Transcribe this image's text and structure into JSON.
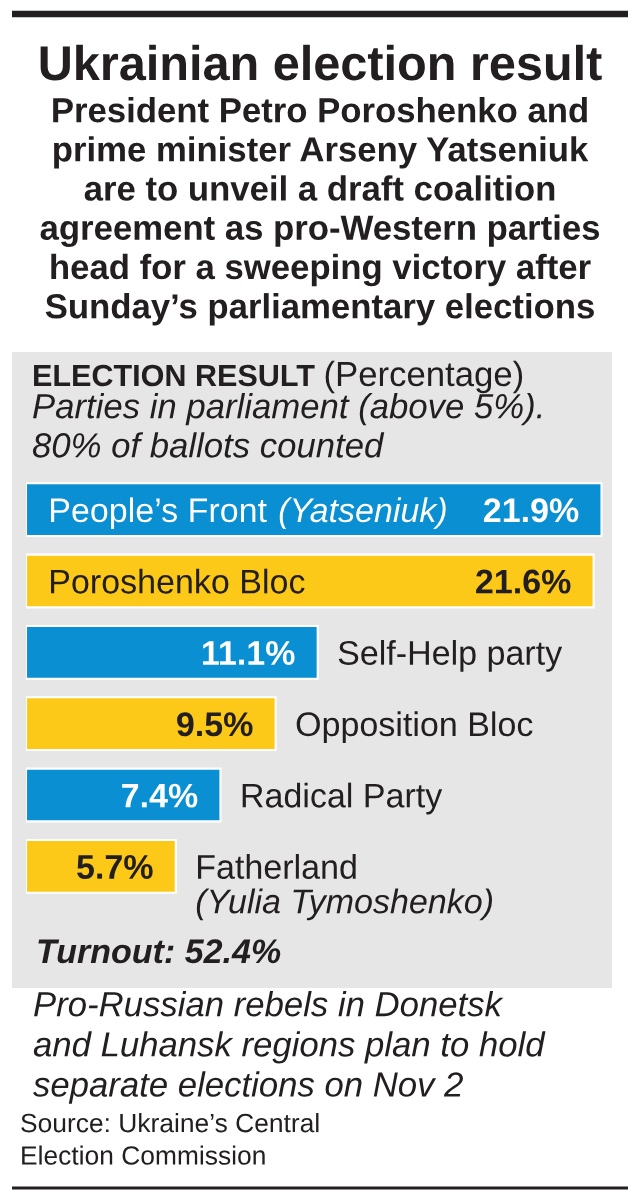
{
  "chart_data": {
    "type": "bar",
    "orientation": "horizontal",
    "title": "Ukrainian election result",
    "subtitle": "President Petro Poroshenko and\nprime minister Arseny Yatseniuk\nare to unveil a draft coalition\nagreement as pro-Western parties\nhead for a sweeping victory after\nSunday’s parliamentary elections",
    "categories": [
      "People’s Front (Yatseniuk)",
      "Poroshenko Bloc",
      "Self-Help party",
      "Opposition Bloc",
      "Radical Party",
      "Fatherland\n(Yulia Tymoshenko)"
    ],
    "values": [
      21.9,
      21.6,
      11.1,
      9.5,
      7.4,
      5.7
    ],
    "value_labels": [
      "21.9%",
      "21.6%",
      "11.1%",
      "9.5%",
      "7.4%",
      "5.7%"
    ],
    "colors": [
      "#0a8fd3",
      "#fdc918",
      "#0a8fd3",
      "#fdc918",
      "#0a8fd3",
      "#fdc918"
    ],
    "xlim": [
      0,
      22.3
    ],
    "tick_labels": false,
    "annotations": [
      "ELECTION RESULT",
      "(Percentage)",
      "Parties in parliament (above 5%).\n80% of ballots counted",
      "Turnout: 52.4%",
      "Pro-Russian rebels in Donetsk\nand Luhansk regions plan to hold\nseparate elections on Nov 2",
      "Source: Ukraine’s Central\nElection Commission"
    ]
  }
}
